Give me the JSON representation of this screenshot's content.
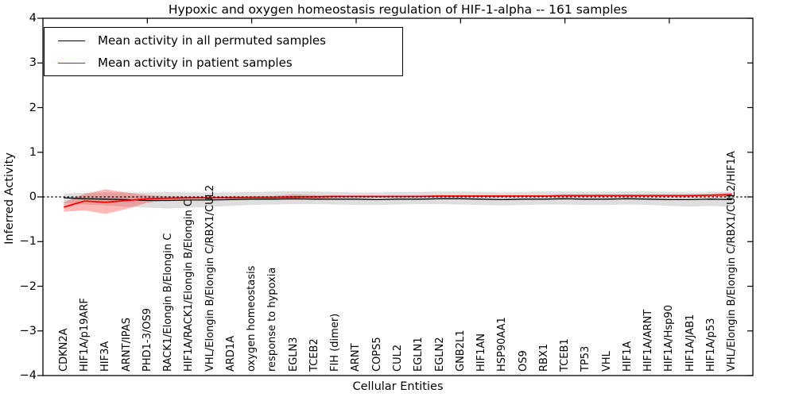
{
  "chart_data": {
    "type": "line",
    "title": "Hypoxic and oxygen homeostasis regulation of HIF-1-alpha -- 161 samples",
    "xlabel": "Cellular Entities",
    "ylabel": "Inferred Activity",
    "ylim": [
      -4,
      4
    ],
    "yticks": [
      "4",
      "3",
      "2",
      "1",
      "0",
      "−1",
      "−2",
      "−3",
      "−4"
    ],
    "grid": false,
    "legend_position": "upper-left",
    "zero_line": {
      "y": 0,
      "style": "dashed",
      "color": "#000000"
    },
    "categories": [
      "CDKN2A",
      "HIF1A/p19ARF",
      "HIF3A",
      "ARNT/IPAS",
      "PHD1-3/OS9",
      "RACK1/Elongin B/Elongin C",
      "HIF1A/RACK1/Elongin B/Elongin C",
      "VHL/Elongin B/Elongin C/RBX1/CUL2",
      "ARD1A",
      "oxygen homeostasis",
      "response to hypoxia",
      "EGLN3",
      "TCEB2",
      "FIH (dimer)",
      "ARNT",
      "COPS5",
      "CUL2",
      "EGLN1",
      "EGLN2",
      "GNB2L1",
      "HIF1AN",
      "HSP90AA1",
      "OS9",
      "RBX1",
      "TCEB1",
      "TP53",
      "VHL",
      "HIF1A",
      "HIF1A/ARNT",
      "HIF1A/Hsp90",
      "HIF1A/JAB1",
      "HIF1A/p53",
      "VHL/Elongin B/Elongin C/RBX1/CUL2/HIF1A"
    ],
    "series": [
      {
        "name": "Mean activity in all permuted samples",
        "color": "#000000",
        "line_width": 1.3,
        "values": [
          -0.02,
          -0.04,
          -0.05,
          -0.06,
          -0.08,
          -0.08,
          -0.07,
          -0.07,
          -0.06,
          -0.05,
          -0.05,
          -0.04,
          -0.05,
          -0.05,
          -0.05,
          -0.06,
          -0.05,
          -0.05,
          -0.04,
          -0.04,
          -0.05,
          -0.06,
          -0.05,
          -0.05,
          -0.04,
          -0.05,
          -0.05,
          -0.04,
          -0.05,
          -0.06,
          -0.06,
          -0.05,
          -0.06
        ],
        "band": {
          "upper": [
            0.08,
            0.09,
            0.1,
            0.1,
            0.1,
            0.11,
            0.1,
            0.1,
            0.1,
            0.11,
            0.12,
            0.13,
            0.12,
            0.11,
            0.1,
            0.1,
            0.11,
            0.11,
            0.12,
            0.12,
            0.11,
            0.1,
            0.11,
            0.12,
            0.12,
            0.11,
            0.11,
            0.12,
            0.12,
            0.11,
            0.1,
            0.11,
            0.12
          ],
          "lower": [
            -0.14,
            -0.17,
            -0.19,
            -0.22,
            -0.24,
            -0.26,
            -0.24,
            -0.22,
            -0.2,
            -0.18,
            -0.17,
            -0.16,
            -0.16,
            -0.17,
            -0.18,
            -0.18,
            -0.17,
            -0.16,
            -0.16,
            -0.17,
            -0.18,
            -0.19,
            -0.18,
            -0.17,
            -0.17,
            -0.18,
            -0.18,
            -0.17,
            -0.18,
            -0.2,
            -0.22,
            -0.2,
            -0.23
          ],
          "fill": "#000000",
          "opacity": 0.13
        }
      },
      {
        "name": "Mean activity in patient samples",
        "color": "#ff0000",
        "line_width": 1.8,
        "values": [
          -0.23,
          -0.09,
          -0.12,
          -0.08,
          -0.04,
          -0.03,
          -0.02,
          -0.02,
          -0.02,
          -0.01,
          -0.01,
          0.0,
          0.0,
          0.01,
          0.01,
          0.01,
          0.01,
          0.01,
          0.02,
          0.02,
          0.02,
          0.02,
          0.02,
          0.02,
          0.03,
          0.03,
          0.03,
          0.03,
          0.03,
          0.03,
          0.03,
          0.04,
          0.05
        ],
        "band": {
          "upper": [
            -0.12,
            0.07,
            0.17,
            0.1,
            0.04,
            0.01,
            0.0,
            0.0,
            0.01,
            0.01,
            0.02,
            0.06,
            0.04,
            0.03,
            0.02,
            0.02,
            0.02,
            0.02,
            0.03,
            0.03,
            0.03,
            0.03,
            0.03,
            0.03,
            0.04,
            0.04,
            0.04,
            0.04,
            0.04,
            0.04,
            0.05,
            0.06,
            0.09
          ],
          "lower": [
            -0.33,
            -0.3,
            -0.38,
            -0.27,
            -0.13,
            -0.07,
            -0.05,
            -0.04,
            -0.04,
            -0.03,
            -0.04,
            -0.07,
            -0.05,
            -0.02,
            -0.01,
            -0.01,
            -0.01,
            -0.01,
            0.0,
            0.0,
            0.0,
            0.0,
            0.01,
            0.01,
            0.01,
            0.01,
            0.01,
            0.02,
            0.02,
            0.02,
            0.01,
            0.02,
            0.0
          ],
          "fill": "#ff0000",
          "opacity": 0.28
        }
      }
    ]
  }
}
